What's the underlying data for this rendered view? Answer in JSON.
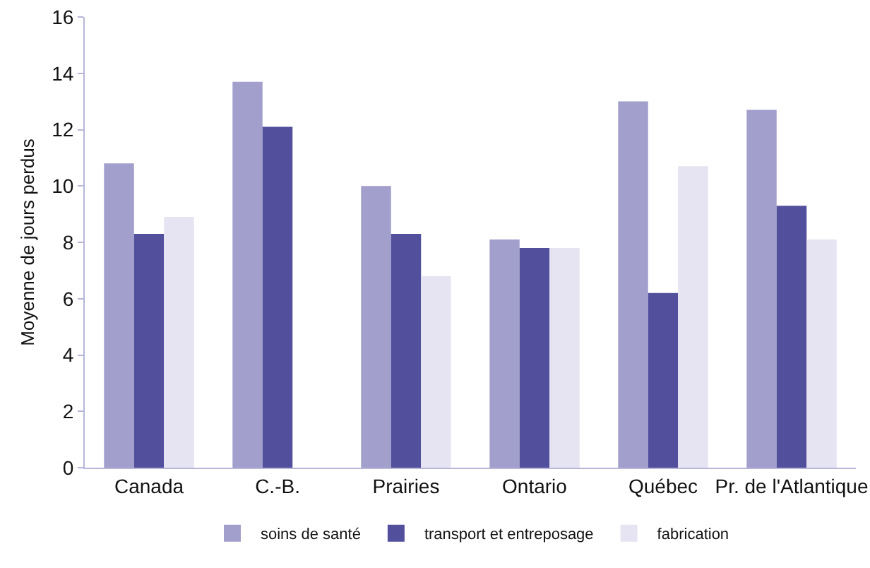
{
  "chart_data": {
    "type": "bar",
    "ylabel": "Moyenne de jours perdus",
    "categories": [
      "Canada",
      "C.-B.",
      "Prairies",
      "Ontario",
      "Québec",
      "Pr. de l'Atlantique"
    ],
    "series": [
      {
        "name": "soins de santé",
        "color": "#a29fcc",
        "values": [
          10.8,
          13.7,
          10.0,
          8.1,
          13.0,
          12.7
        ]
      },
      {
        "name": "transport et entreposage",
        "color": "#524f9c",
        "values": [
          8.3,
          12.1,
          8.3,
          7.8,
          6.2,
          9.3
        ]
      },
      {
        "name": "fabrication",
        "color": "#e6e4f2",
        "values": [
          8.9,
          null,
          6.8,
          7.8,
          10.7,
          8.1
        ]
      }
    ],
    "ylim": [
      0,
      16
    ],
    "yticks": [
      0,
      2,
      4,
      6,
      8,
      10,
      12,
      14,
      16
    ],
    "grid": false,
    "legend": "bottom"
  }
}
